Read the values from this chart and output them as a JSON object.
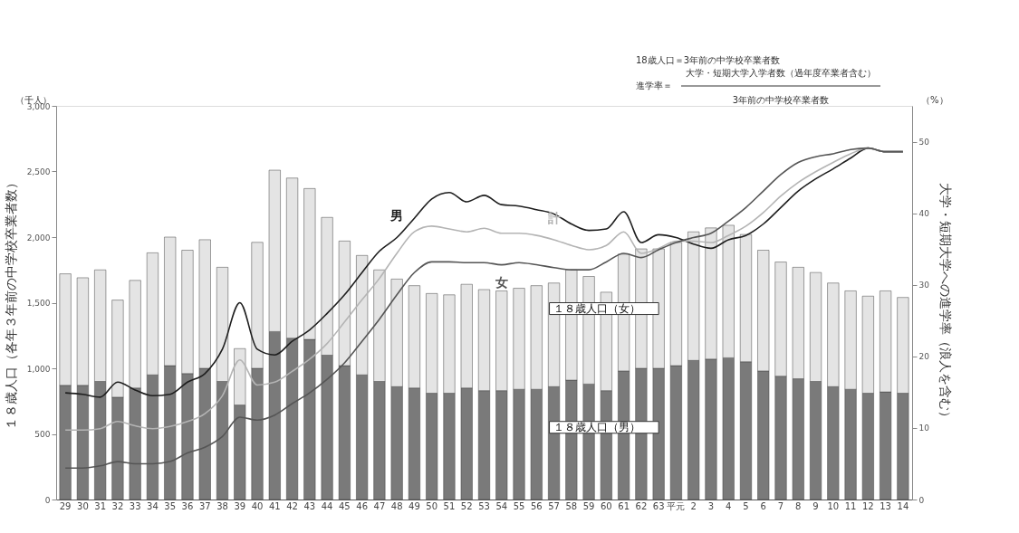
{
  "chart_data": {
    "type": "bar",
    "stacked": true,
    "legend": false,
    "grid": false,
    "ylabel": "１８歳人口（各年３年前の中学校卒業者数）",
    "y2label": "大学・短期大学への進学率（浪人を含む）",
    "annotations": [
      "（千人）",
      "（%）",
      "18歳人口＝3年前の中学校卒業者数",
      "進学率＝",
      "大学・短期大学入学者数（過年度卒業者含む）",
      "3年前の中学校卒業者数"
    ],
    "categories": [
      "29",
      "30",
      "31",
      "32",
      "33",
      "34",
      "35",
      "36",
      "37",
      "38",
      "39",
      "40",
      "41",
      "42",
      "43",
      "44",
      "45",
      "46",
      "47",
      "48",
      "49",
      "50",
      "51",
      "52",
      "53",
      "54",
      "55",
      "56",
      "57",
      "58",
      "59",
      "60",
      "61",
      "62",
      "63",
      "平元",
      "2",
      "3",
      "4",
      "5",
      "6",
      "7",
      "8",
      "9",
      "10",
      "11",
      "12",
      "13",
      "14"
    ],
    "ylim": [
      0,
      3000
    ],
    "yticks": [
      0,
      500,
      {
        "value": 1000,
        "label": "1,000"
      },
      {
        "value": 1500,
        "label": "1,500"
      },
      {
        "value": 2000,
        "label": "2,000"
      },
      {
        "value": 2500,
        "label": "2,500"
      },
      {
        "value": 3000,
        "label": "3,000"
      }
    ],
    "y2lim": [
      0,
      55
    ],
    "y2ticks": [
      0,
      10,
      20,
      30,
      40,
      50
    ],
    "series": [
      {
        "name": "１８歳人口（男）",
        "color": "#7a7a7a",
        "values": [
          870,
          870,
          900,
          780,
          850,
          950,
          1020,
          960,
          1000,
          900,
          720,
          1000,
          1280,
          1230,
          1220,
          1100,
          1020,
          950,
          900,
          860,
          850,
          810,
          810,
          850,
          830,
          830,
          840,
          840,
          860,
          910,
          880,
          830,
          980,
          1000,
          1000,
          1020,
          1060,
          1070,
          1080,
          1050,
          980,
          940,
          920,
          900,
          860,
          840,
          810,
          820,
          810
        ]
      },
      {
        "name": "１８歳人口（女）",
        "color": "#e4e4e4",
        "values": [
          850,
          820,
          850,
          740,
          820,
          930,
          980,
          940,
          980,
          870,
          430,
          960,
          1230,
          1220,
          1150,
          1050,
          950,
          910,
          850,
          820,
          780,
          760,
          750,
          790,
          770,
          760,
          770,
          790,
          790,
          840,
          820,
          750,
          890,
          910,
          910,
          940,
          980,
          1000,
          1010,
          970,
          920,
          870,
          850,
          830,
          790,
          750,
          740,
          770,
          730
        ]
      },
      {
        "name": "男",
        "type": "line",
        "axis": "y2",
        "color": "#1e1e1e",
        "values": [
          14.9,
          14.7,
          14.3,
          16.4,
          15.3,
          14.5,
          14.7,
          16.4,
          17.6,
          21.0,
          27.5,
          21.0,
          20.2,
          22.1,
          23.7,
          26.0,
          28.6,
          31.7,
          34.7,
          36.6,
          39.3,
          42.0,
          42.9,
          41.6,
          42.5,
          41.2,
          41.0,
          40.5,
          39.9,
          38.5,
          37.6,
          37.8,
          40.2,
          35.9,
          37.0,
          36.6,
          35.7,
          35.1,
          36.3,
          36.9,
          38.5,
          40.8,
          43.1,
          44.8,
          46.2,
          47.7,
          49.1,
          48.6,
          48.6
        ]
      },
      {
        "name": "計",
        "type": "line",
        "axis": "y2",
        "color": "#b4b4b4",
        "values": [
          9.7,
          9.7,
          9.9,
          10.9,
          10.3,
          9.9,
          10.2,
          10.9,
          12.0,
          14.5,
          19.5,
          16.0,
          16.4,
          17.9,
          19.6,
          21.8,
          24.8,
          27.9,
          30.9,
          34.4,
          37.4,
          38.2,
          37.8,
          37.4,
          37.9,
          37.2,
          37.2,
          36.9,
          36.3,
          35.5,
          34.9,
          35.5,
          37.4,
          34.4,
          35.1,
          36.1,
          36.1,
          35.9,
          36.9,
          38.2,
          40.1,
          42.4,
          44.3,
          45.8,
          47.1,
          48.3,
          49.1,
          48.6,
          48.6
        ]
      },
      {
        "name": "女",
        "type": "line",
        "axis": "y2",
        "color": "#555555",
        "values": [
          4.4,
          4.4,
          4.7,
          5.3,
          5.0,
          5.0,
          5.3,
          6.5,
          7.3,
          8.8,
          11.5,
          11.1,
          11.8,
          13.4,
          14.9,
          16.8,
          19.1,
          22.1,
          25.2,
          28.6,
          31.7,
          33.2,
          33.2,
          33.1,
          33.1,
          32.8,
          33.1,
          32.8,
          32.4,
          32.1,
          32.1,
          33.2,
          34.4,
          33.8,
          34.9,
          35.9,
          36.6,
          37.2,
          38.9,
          40.8,
          43.1,
          45.4,
          47.1,
          47.9,
          48.3,
          48.9,
          49.1,
          48.6,
          48.6
        ]
      }
    ]
  }
}
